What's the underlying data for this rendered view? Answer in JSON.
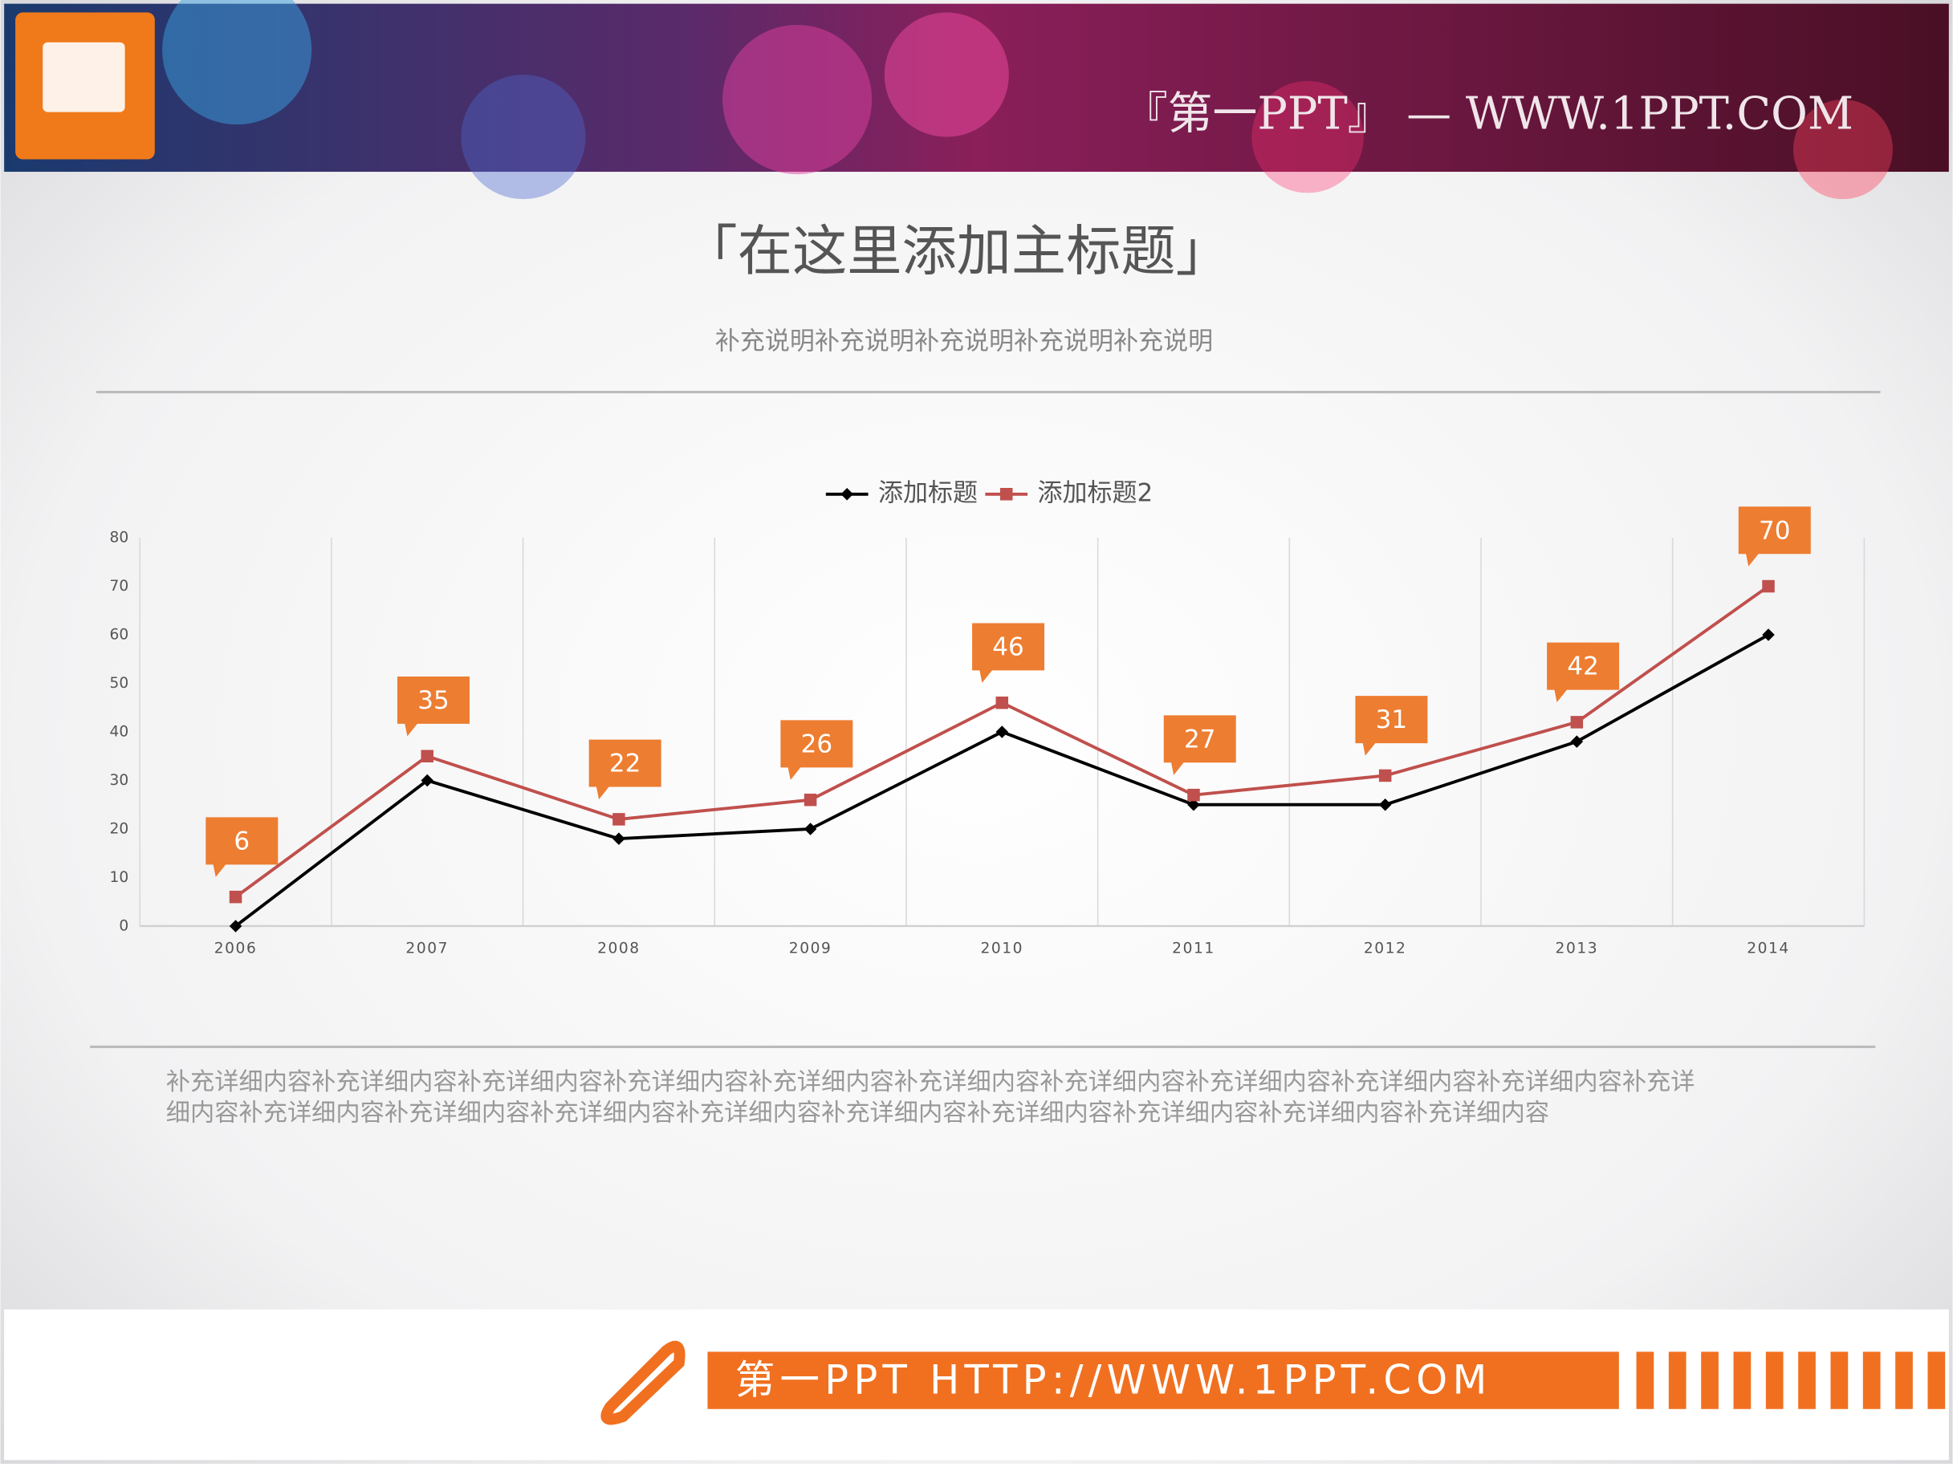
{
  "header": {
    "brand": "『第一PPT』 — WWW.1PPT.COM"
  },
  "footer": {
    "brand": "第一PPT HTTP://WWW.1PPT.COM"
  },
  "chart_data": {
    "type": "line",
    "title": "「在这里添加主标题」",
    "subtitle": "补充说明补充说明补充说明补充说明补充说明",
    "caption": [
      "补充详细内容补充详细内容补充详细内容补充详细内容补充详细内容补充详细内容补充详细内容补充详细内容补充详细内容补充详细内容补充详",
      "细内容补充详细内容补充详细内容补充详细内容补充详细内容补充详细内容补充详细内容补充详细内容补充详细内容补充详细内容"
    ],
    "categories": [
      "2006",
      "2007",
      "2008",
      "2009",
      "2010",
      "2011",
      "2012",
      "2013",
      "2014"
    ],
    "series": [
      {
        "name": "添加标题",
        "color": "#000000",
        "marker": "diamond",
        "values": [
          0,
          30,
          18,
          20,
          40,
          25,
          25,
          38,
          60
        ]
      },
      {
        "name": "添加标题2",
        "color": "#c0504d",
        "marker": "square",
        "label_color": "#ed7d31",
        "values": [
          6,
          35,
          22,
          26,
          46,
          27,
          31,
          42,
          70
        ]
      }
    ],
    "ylim": [
      0,
      80
    ],
    "yticks": [
      0,
      10,
      20,
      30,
      40,
      50,
      60,
      70,
      80
    ],
    "grid": "vertical",
    "legend": "top"
  }
}
